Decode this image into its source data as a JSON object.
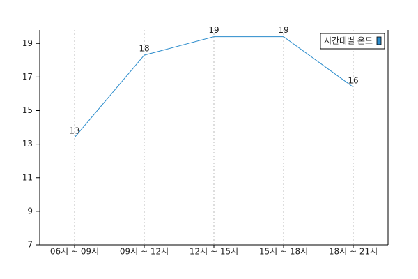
{
  "chart_data": {
    "type": "line",
    "categories": [
      "06시 ~ 09시",
      "09시 ~ 12시",
      "12시 ~ 15시",
      "15시 ~ 18시",
      "18시 ~ 21시"
    ],
    "series": [
      {
        "name": "시간대별 온도",
        "color": "#2b8ccc",
        "values": [
          13.4,
          18.3,
          19.4,
          19.4,
          16.4
        ],
        "value_labels": [
          "13",
          "18",
          "19",
          "19",
          "16"
        ]
      }
    ],
    "ylim": [
      7,
      19.8
    ],
    "yticks": [
      7,
      9,
      11,
      13,
      15,
      17,
      19
    ],
    "grid": "x",
    "legend": "upper right"
  }
}
